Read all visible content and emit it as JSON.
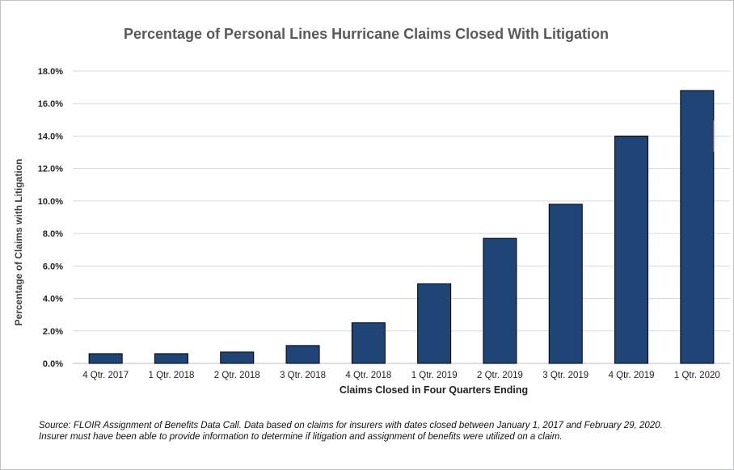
{
  "chart_data": {
    "type": "bar",
    "title": "Percentage of Personal Lines Hurricane Claims Closed With Litigation",
    "xlabel": "Claims Closed in Four Quarters Ending",
    "ylabel": "Percentage of Claims with Litigation",
    "categories": [
      "4 Qtr. 2017",
      "1 Qtr. 2018",
      "2 Qtr. 2018",
      "3 Qtr. 2018",
      "4 Qtr. 2018",
      "1 Qtr. 2019",
      "2 Qtr. 2019",
      "3 Qtr. 2019",
      "4 Qtr. 2019",
      "1 Qtr. 2020"
    ],
    "values": [
      0.6,
      0.6,
      0.7,
      1.1,
      2.5,
      4.9,
      7.7,
      9.8,
      14.0,
      16.8
    ],
    "ylim": [
      0,
      18
    ],
    "yticks": [
      "0.0%",
      "2.0%",
      "4.0%",
      "6.0%",
      "8.0%",
      "10.0%",
      "12.0%",
      "14.0%",
      "16.0%",
      "18.0%"
    ],
    "grid": true,
    "bar_color": "#1f4577",
    "grid_color": "#d9d9d9"
  },
  "source_note": {
    "line1": "Source: FLOIR Assignment of Benefits Data Call. Data based on claims for insurers with dates closed between January 1, 2017 and February 29, 2020.",
    "line2": "Insurer must have been able to provide information to determine if litigation and assignment of benefits were utilized on a claim."
  }
}
